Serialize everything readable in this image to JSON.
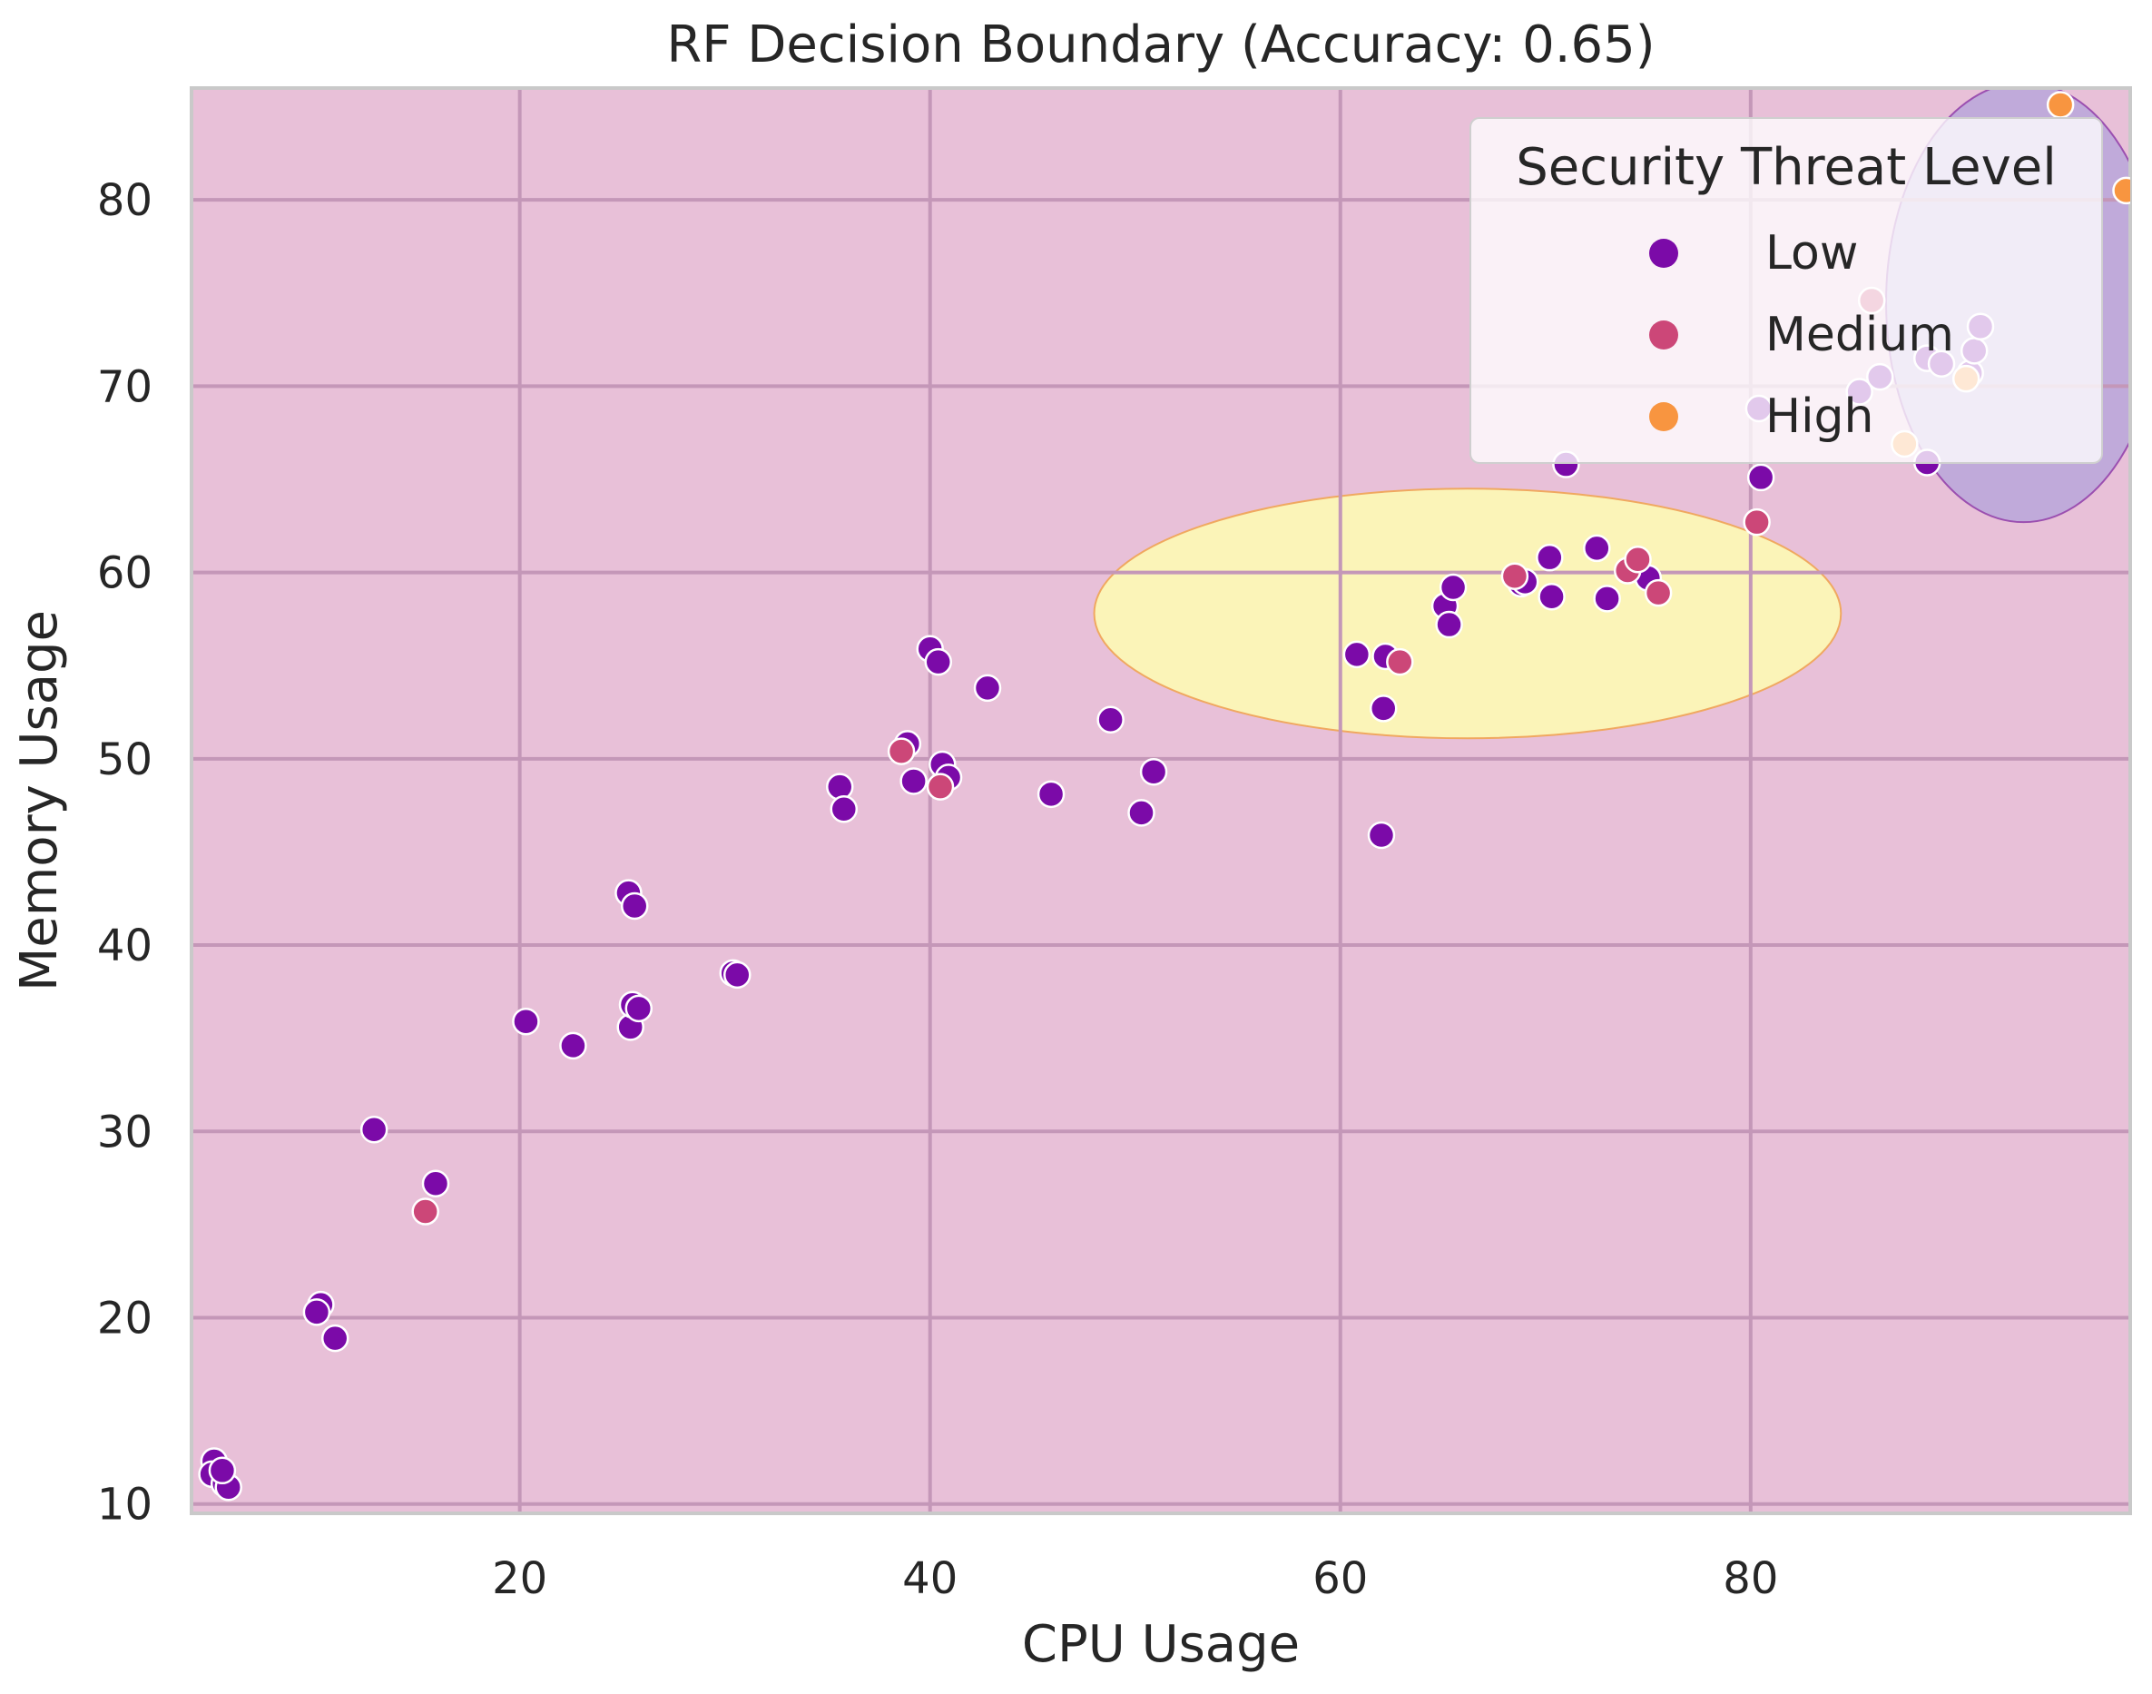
{
  "chart_data": {
    "type": "scatter",
    "title": "RF Decision Boundary (Accuracy: 0.65)",
    "xlabel": "CPU Usage",
    "ylabel": "Memory Usage",
    "xlim": [
      4,
      98.5
    ],
    "ylim": [
      9.5,
      86
    ],
    "xticks": [
      20,
      40,
      60,
      80
    ],
    "yticks": [
      10,
      20,
      30,
      40,
      50,
      60,
      70,
      80
    ],
    "grid": true,
    "colors": {
      "background": "#e8c0d8",
      "grid": "#c497b8",
      "Low": "#7b0aa8",
      "Medium": "#cc4778",
      "High": "#f89540",
      "region_medium": "#fbf4b8",
      "region_medium_edge": "#f0a860",
      "region_high": "#b8a6da",
      "region_high_edge": "#9b4fb0"
    },
    "decision_regions": [
      {
        "class": "Medium",
        "shape": "ellipse",
        "cx": 66.2,
        "cy": 57.8,
        "rx": 18.2,
        "ry": 6.7
      },
      {
        "class": "High",
        "shape": "ellipse",
        "cx": 93.3,
        "cy": 74.5,
        "rx": 6.7,
        "ry": 11.8
      }
    ],
    "legend": {
      "title": "Security Threat Level",
      "position": "top-right",
      "entries": [
        {
          "label": "Low",
          "color": "#7b0aa8"
        },
        {
          "label": "Medium",
          "color": "#cc4778"
        },
        {
          "label": "High",
          "color": "#f89540"
        }
      ]
    },
    "series": [
      {
        "name": "Low",
        "points": [
          [
            5.1,
            12.3
          ],
          [
            5.0,
            11.6
          ],
          [
            5.6,
            11.1
          ],
          [
            5.8,
            10.9
          ],
          [
            5.5,
            11.8
          ],
          [
            10.3,
            20.7
          ],
          [
            10.1,
            20.3
          ],
          [
            11.0,
            18.9
          ],
          [
            12.9,
            30.1
          ],
          [
            15.9,
            27.2
          ],
          [
            20.3,
            35.9
          ],
          [
            22.6,
            34.6
          ],
          [
            25.3,
            42.8
          ],
          [
            25.6,
            42.1
          ],
          [
            25.4,
            35.6
          ],
          [
            25.5,
            36.8
          ],
          [
            25.8,
            36.6
          ],
          [
            30.4,
            38.5
          ],
          [
            30.6,
            38.4
          ],
          [
            35.6,
            48.5
          ],
          [
            35.8,
            47.3
          ],
          [
            38.9,
            50.8
          ],
          [
            39.2,
            48.8
          ],
          [
            40.0,
            55.9
          ],
          [
            40.4,
            55.2
          ],
          [
            40.6,
            49.7
          ],
          [
            40.9,
            49.0
          ],
          [
            42.8,
            53.8
          ],
          [
            45.9,
            48.1
          ],
          [
            48.8,
            52.1
          ],
          [
            50.3,
            47.1
          ],
          [
            50.9,
            49.3
          ],
          [
            60.8,
            55.6
          ],
          [
            62.1,
            52.7
          ],
          [
            62.2,
            55.5
          ],
          [
            62.0,
            45.9
          ],
          [
            65.1,
            58.2
          ],
          [
            65.3,
            57.2
          ],
          [
            65.5,
            59.2
          ],
          [
            68.8,
            59.4
          ],
          [
            69.0,
            59.5
          ],
          [
            70.2,
            60.8
          ],
          [
            70.3,
            58.7
          ],
          [
            71.0,
            65.8
          ],
          [
            72.5,
            61.3
          ],
          [
            73.0,
            58.6
          ],
          [
            75.0,
            59.7
          ],
          [
            80.5,
            65.1
          ],
          [
            88.6,
            65.9
          ],
          [
            80.4,
            68.8
          ],
          [
            85.3,
            69.7
          ],
          [
            86.3,
            70.5
          ],
          [
            88.6,
            71.5
          ],
          [
            89.3,
            71.2
          ],
          [
            90.7,
            70.7
          ],
          [
            90.9,
            71.9
          ],
          [
            91.2,
            73.2
          ]
        ]
      },
      {
        "name": "Medium",
        "points": [
          [
            15.4,
            25.7
          ],
          [
            38.6,
            50.4
          ],
          [
            40.5,
            48.5
          ],
          [
            62.9,
            55.2
          ],
          [
            68.5,
            59.8
          ],
          [
            74.0,
            60.1
          ],
          [
            74.5,
            60.7
          ],
          [
            75.5,
            58.9
          ],
          [
            80.3,
            62.7
          ],
          [
            85.9,
            74.6
          ]
        ]
      },
      {
        "name": "High",
        "points": [
          [
            95.1,
            85.1
          ],
          [
            98.3,
            80.5
          ],
          [
            87.5,
            66.9
          ],
          [
            90.5,
            70.4
          ]
        ]
      }
    ]
  }
}
